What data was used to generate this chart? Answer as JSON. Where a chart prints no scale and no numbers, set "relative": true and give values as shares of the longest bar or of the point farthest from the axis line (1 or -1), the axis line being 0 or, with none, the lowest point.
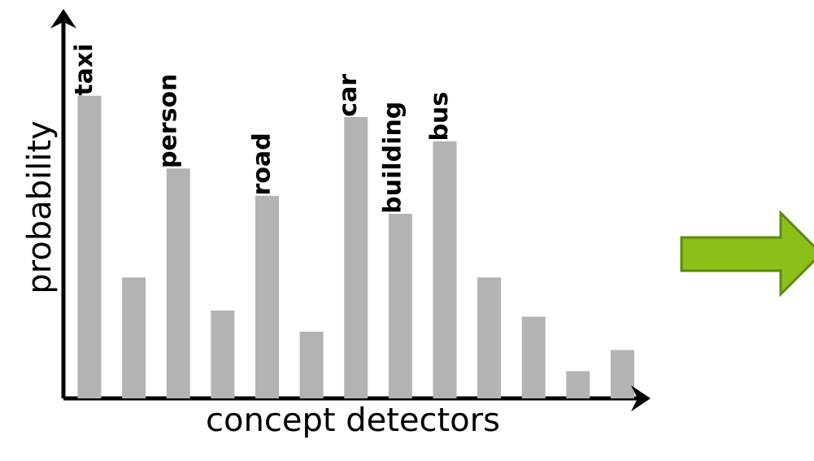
{
  "chart_data": {
    "type": "bar",
    "relative": true,
    "xlabel": "concept detectors",
    "ylabel": "probability",
    "categories": [
      "taxi",
      null,
      "person",
      null,
      "road",
      null,
      "car",
      "building",
      "bus",
      null,
      null,
      null,
      null
    ],
    "values": [
      1.0,
      0.4,
      0.76,
      0.29,
      0.67,
      0.22,
      0.93,
      0.61,
      0.85,
      0.4,
      0.27,
      0.09,
      0.16
    ],
    "color": "#b3b3b3"
  }
}
